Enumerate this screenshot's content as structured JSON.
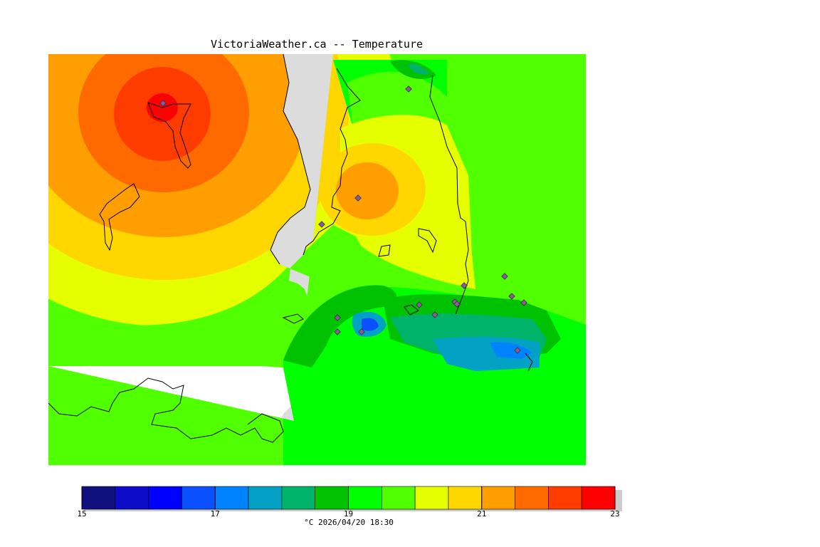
{
  "title": "VictoriaWeather.ca -- Temperature",
  "map": {
    "variable": "Temperature",
    "units": "°C",
    "background_color": "#dcdcdc",
    "no_data_color": "#ffffff",
    "station_marker_color": "#8a5a9e",
    "hot_spot_value": 23,
    "cold_spot_value": 17
  },
  "colorbar": {
    "min": 15,
    "max": 23,
    "step": 0.5,
    "tick_labels": [
      "15",
      "17",
      "19",
      "21",
      "23"
    ],
    "colors": [
      "#10107e",
      "#0b0bc8",
      "#0000ff",
      "#0a50ff",
      "#0083ff",
      "#03a2c5",
      "#00b36b",
      "#00c200",
      "#00ff00",
      "#50ff00",
      "#e6ff00",
      "#ffd600",
      "#ff9e00",
      "#ff6a00",
      "#ff3c00",
      "#ff0000"
    ]
  },
  "caption": "°C  2026/04/20 18:30"
}
